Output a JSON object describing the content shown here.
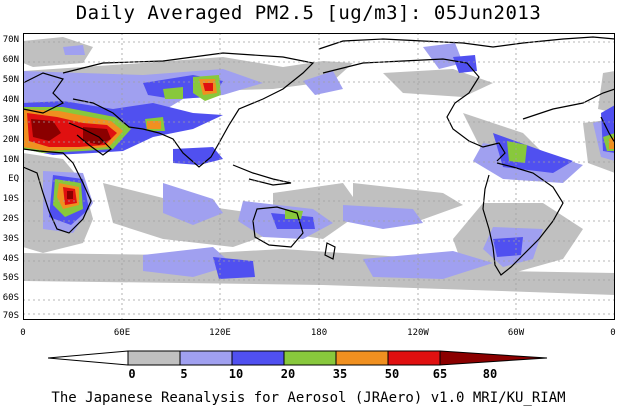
{
  "title": "Daily Averaged PM2.5 [ug/m3]: 05Jun2013",
  "footer": "The Japanese Reanalysis for Aerosol (JRAero) v1.0 MRI/KU_RIAM",
  "lat_labels": [
    "70N",
    "60N",
    "50N",
    "40N",
    "30N",
    "20N",
    "10N",
    "EQ",
    "10S",
    "20S",
    "30S",
    "40S",
    "50S",
    "60S",
    "70S"
  ],
  "lon_labels": [
    "0",
    "60E",
    "120E",
    "180",
    "120W",
    "60W",
    "0"
  ],
  "colorbar": {
    "ticks": [
      "0",
      "5",
      "10",
      "20",
      "35",
      "50",
      "65",
      "80"
    ],
    "colors": [
      "#ffffff",
      "#c0c0c0",
      "#a0a0f0",
      "#5050f0",
      "#88c83c",
      "#f09020",
      "#e01010",
      "#8b0000"
    ]
  },
  "palette": {
    "land_outline": "#000000",
    "grid": "#a0a0a0"
  }
}
